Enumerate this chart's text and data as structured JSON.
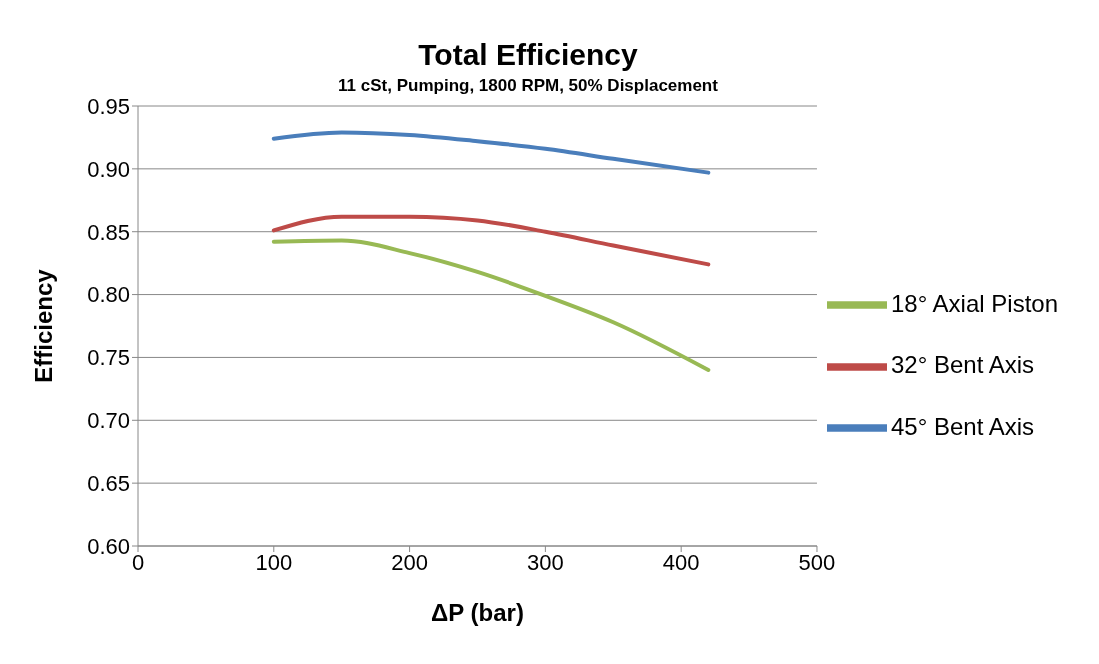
{
  "chart_data": {
    "type": "line",
    "title": "Total Efficiency",
    "subtitle": "11 cSt, Pumping, 1800 RPM, 50% Displacement",
    "xlabel": "ΔP (bar)",
    "ylabel": "Efficiency",
    "x": [
      100,
      150,
      200,
      250,
      300,
      350,
      420
    ],
    "series": [
      {
        "name": "45° Bent Axis",
        "color": "#4a7ebb",
        "values": [
          0.924,
          0.929,
          0.927,
          0.922,
          0.916,
          0.908,
          0.897
        ]
      },
      {
        "name": "32° Bent Axis",
        "color": "#be4b48",
        "values": [
          0.851,
          0.862,
          0.862,
          0.859,
          0.85,
          0.839,
          0.824
        ]
      },
      {
        "name": "18° Axial Piston",
        "color": "#98b954",
        "values": [
          0.842,
          0.843,
          0.833,
          0.818,
          0.799,
          0.778,
          0.74
        ]
      }
    ],
    "xlim": [
      0,
      500
    ],
    "xticks": [
      0,
      100,
      200,
      300,
      400,
      500
    ],
    "ylim": [
      0.6,
      0.95
    ],
    "yticks": [
      {
        "value": 0.6,
        "label": "0.60"
      },
      {
        "value": 0.65,
        "label": "0.65"
      },
      {
        "value": 0.7,
        "label": "0.70"
      },
      {
        "value": 0.75,
        "label": "0.75"
      },
      {
        "value": 0.8,
        "label": "0.80"
      },
      {
        "value": 0.85,
        "label": "0.85"
      },
      {
        "value": 0.9,
        "label": "0.90"
      },
      {
        "value": 0.95,
        "label": "0.95"
      }
    ],
    "grid": "y",
    "legend": "right",
    "marker": "none",
    "line_style": "solid"
  }
}
